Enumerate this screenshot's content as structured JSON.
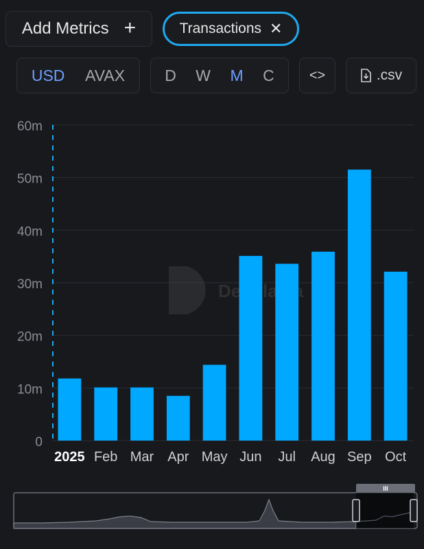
{
  "toolbar": {
    "add_metrics_label": "Add Metrics",
    "add_icon": "plus-icon",
    "metric_chip": {
      "label": "Transactions",
      "close_icon": "close-icon"
    },
    "currency_options": [
      {
        "label": "USD",
        "active": true
      },
      {
        "label": "AVAX",
        "active": false
      }
    ],
    "period_options": [
      {
        "label": "D",
        "active": false
      },
      {
        "label": "W",
        "active": false
      },
      {
        "label": "M",
        "active": true
      },
      {
        "label": "C",
        "active": false
      }
    ],
    "embed_label": "<>",
    "csv_label": ".csv",
    "csv_icon": "file-download-icon"
  },
  "watermark": "DefiLlama",
  "colors": {
    "background": "#18191d",
    "bar": "#00a8ff",
    "accent": "#6d9eff",
    "chip_border": "#1fa9ef",
    "grid": "#2b2d33",
    "axis_text": "#8a8d95"
  },
  "chart_data": {
    "type": "bar",
    "categories": [
      "2025",
      "Feb",
      "Mar",
      "Apr",
      "May",
      "Jun",
      "Jul",
      "Aug",
      "Sep",
      "Oct"
    ],
    "values": [
      11.8,
      10.1,
      10.1,
      8.5,
      14.4,
      35.1,
      33.6,
      35.9,
      51.5,
      32.1
    ],
    "y_unit": "m",
    "ylim": [
      0,
      60
    ],
    "yticks": [
      0,
      10,
      20,
      30,
      40,
      50,
      60
    ],
    "ytick_labels": [
      "0",
      "10m",
      "20m",
      "30m",
      "40m",
      "50m",
      "60m"
    ],
    "bold_categories": [
      "2025"
    ],
    "grid": true,
    "title": "",
    "xlabel": "",
    "ylabel": ""
  },
  "brush": {
    "handle_label": "III",
    "selection_start": 0.843,
    "selection_end": 0.977
  }
}
